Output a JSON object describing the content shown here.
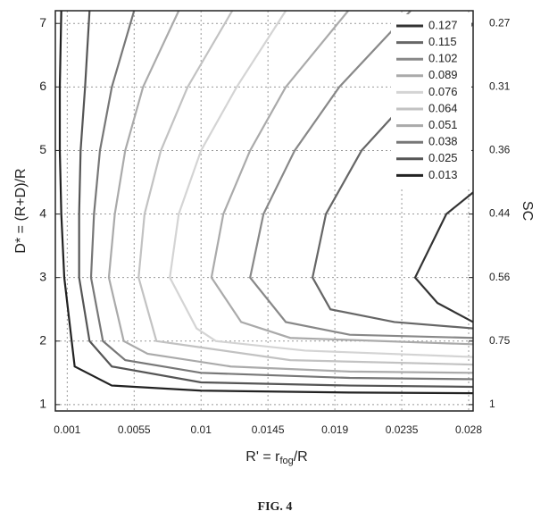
{
  "chart_data": {
    "type": "contour",
    "xlabel": [
      "R' = r",
      "fog",
      "/R"
    ],
    "ylabel": "D* = (R+D)/R",
    "y2label": "SC",
    "caption": "FIG. 4",
    "xlim": [
      0.0002,
      0.0283
    ],
    "ylim": [
      0.9,
      7.2
    ],
    "xticks": [
      0.001,
      0.0055,
      0.01,
      0.0145,
      0.019,
      0.0235,
      0.028
    ],
    "yticks": [
      1,
      2,
      3,
      4,
      5,
      6,
      7
    ],
    "y2lim": [
      0.9,
      7.2
    ],
    "y2ticks": [
      {
        "value": 7,
        "label": "0.27"
      },
      {
        "value": 6,
        "label": "0.31"
      },
      {
        "value": 5,
        "label": "0.36"
      },
      {
        "value": 4,
        "label": "0.44"
      },
      {
        "value": 3,
        "label": "0.56"
      },
      {
        "value": 2,
        "label": "0.75"
      },
      {
        "value": 1,
        "label": "1"
      }
    ],
    "grid": true,
    "legend": "upper right",
    "series": [
      {
        "name": "0.127",
        "color": "#333333",
        "x": [
          0.0283,
          0.0265,
          0.0244,
          0.0259,
          0.0283
        ],
        "values": [
          4.34,
          4,
          3,
          2.6,
          2.3
        ]
      },
      {
        "name": "0.115",
        "color": "#666666",
        "x": [
          0.0283,
          0.0247,
          0.0208,
          0.0184,
          0.0175,
          0.0187,
          0.023,
          0.0283
        ],
        "values": [
          7.0,
          6,
          5,
          4,
          3,
          2.5,
          2.3,
          2.2
        ]
      },
      {
        "name": "0.102",
        "color": "#888888",
        "x": [
          0.0241,
          0.0193,
          0.0163,
          0.0142,
          0.0133,
          0.0157,
          0.02,
          0.0283
        ],
        "values": [
          7.2,
          6,
          5,
          4,
          3,
          2.3,
          2.1,
          2.05
        ]
      },
      {
        "name": "0.089",
        "color": "#aaaaaa",
        "x": [
          0.0199,
          0.0157,
          0.0133,
          0.0115,
          0.0107,
          0.0127,
          0.016,
          0.0283
        ],
        "values": [
          7.2,
          6,
          5,
          4,
          3,
          2.3,
          2.05,
          1.95
        ]
      },
      {
        "name": "0.076",
        "color": "#d4d4d4",
        "x": [
          0.0157,
          0.0124,
          0.01,
          0.0085,
          0.0079,
          0.0097,
          0.011,
          0.017,
          0.0283
        ],
        "values": [
          7.2,
          6,
          5,
          4,
          3,
          2.2,
          2,
          1.85,
          1.75
        ]
      },
      {
        "name": "0.064",
        "color": "#c2c2c2",
        "x": [
          0.0121,
          0.0091,
          0.0073,
          0.0062,
          0.0058,
          0.007,
          0.01,
          0.016,
          0.0283
        ],
        "values": [
          7.2,
          6,
          5,
          4,
          3,
          2,
          1.9,
          1.7,
          1.63
        ]
      },
      {
        "name": "0.051",
        "color": "#aaaaaa",
        "x": [
          0.0085,
          0.0061,
          0.0049,
          0.0042,
          0.0038,
          0.0048,
          0.0064,
          0.012,
          0.02,
          0.0283
        ],
        "values": [
          7.2,
          6,
          5,
          4,
          3,
          2,
          1.8,
          1.6,
          1.52,
          1.5
        ]
      },
      {
        "name": "0.038",
        "color": "#777777",
        "x": [
          0.0055,
          0.004,
          0.0032,
          0.0028,
          0.0026,
          0.0034,
          0.0049,
          0.01,
          0.02,
          0.0283
        ],
        "values": [
          7.2,
          6,
          5,
          4,
          3,
          2,
          1.7,
          1.5,
          1.42,
          1.4
        ]
      },
      {
        "name": "0.025",
        "color": "#555555",
        "x": [
          0.0025,
          0.0022,
          0.0019,
          0.0018,
          0.0018,
          0.0025,
          0.004,
          0.01,
          0.02,
          0.0283
        ],
        "values": [
          7.2,
          6,
          5,
          4,
          3,
          2,
          1.6,
          1.35,
          1.3,
          1.28
        ]
      },
      {
        "name": "0.013",
        "color": "#222222",
        "x": [
          0.0006,
          0.0005,
          0.0005,
          0.0006,
          0.0008,
          0.0015,
          0.004,
          0.01,
          0.02,
          0.0283
        ],
        "values": [
          7.2,
          6,
          5,
          4,
          3,
          1.6,
          1.3,
          1.22,
          1.19,
          1.18
        ]
      }
    ]
  }
}
